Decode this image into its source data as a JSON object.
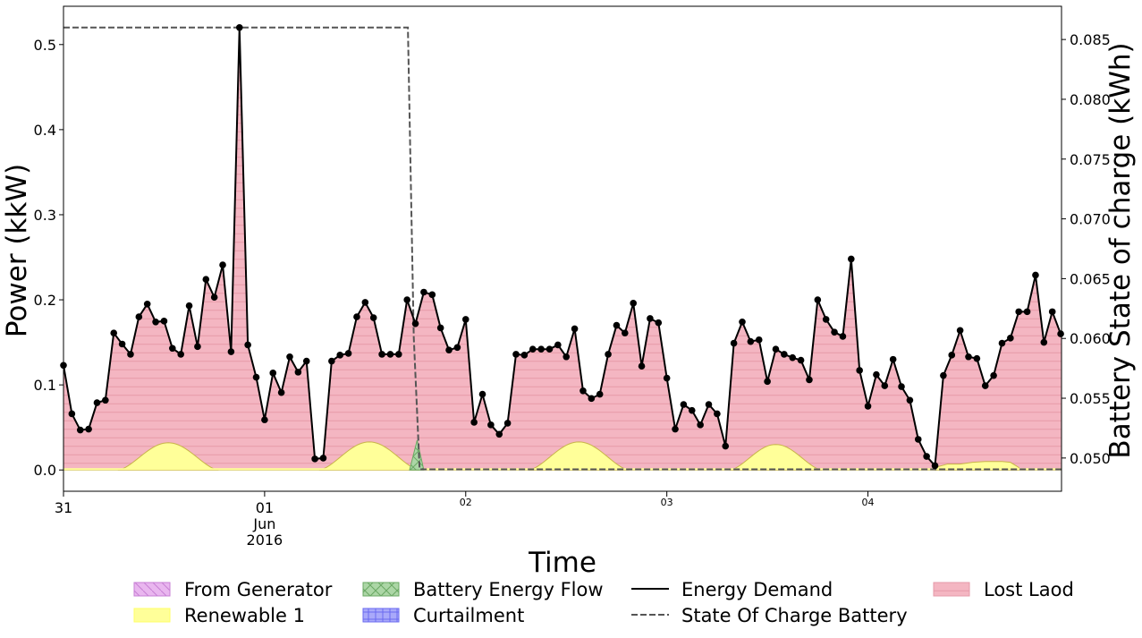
{
  "chart_data": {
    "type": "line",
    "xlabel": "Time",
    "ylabel": "Power (kkW)",
    "y2label": "Battery State of charge (kWh)",
    "xlim_hours": [
      0,
      119.1
    ],
    "ylim": [
      -0.025,
      0.545
    ],
    "y2lim": [
      0.04722,
      0.08778
    ],
    "grid": false,
    "legend_position": "bottom",
    "x_ticks": [
      {
        "hours": 0,
        "label": "31",
        "size": "large"
      },
      {
        "hours": 24,
        "label": "01",
        "label2": "Jun",
        "label3": "2016",
        "size": "large"
      },
      {
        "hours": 48,
        "label": "02",
        "size": "small"
      },
      {
        "hours": 72,
        "label": "03",
        "size": "small"
      },
      {
        "hours": 96,
        "label": "04",
        "size": "small"
      }
    ],
    "y_ticks": [
      "0.0",
      "0.1",
      "0.2",
      "0.3",
      "0.4",
      "0.5"
    ],
    "y2_ticks": [
      "0.050",
      "0.055",
      "0.060",
      "0.065",
      "0.070",
      "0.075",
      "0.080",
      "0.085"
    ],
    "series": [
      {
        "name": "Energy Demand",
        "style": "line-with-markers",
        "color": "#000000",
        "x_hours": [
          0,
          1,
          2,
          3,
          4,
          5,
          6,
          7,
          8,
          9,
          10,
          11,
          12,
          13,
          14,
          15,
          16,
          17,
          18,
          19,
          20,
          21,
          22,
          23,
          24,
          25,
          26,
          27,
          28,
          29,
          30,
          31,
          32,
          33,
          34,
          35,
          36,
          37,
          38,
          39,
          40,
          41,
          42,
          43,
          44,
          45,
          46,
          47,
          48,
          49,
          50,
          51,
          52,
          53,
          54,
          55,
          56,
          57,
          58,
          59,
          60,
          61,
          62,
          63,
          64,
          65,
          66,
          67,
          68,
          69,
          70,
          71,
          72,
          73,
          74,
          75,
          76,
          77,
          78,
          79,
          80,
          81,
          82,
          83,
          84,
          85,
          86,
          87,
          88,
          89,
          90,
          91,
          92,
          93,
          94,
          95,
          96,
          97,
          98,
          99,
          100,
          101,
          102,
          103,
          104,
          105,
          106,
          107,
          108,
          109,
          110,
          111,
          112,
          113,
          114,
          115,
          116,
          117,
          118,
          119
        ],
        "values": [
          0.123,
          0.066,
          0.047,
          0.048,
          0.079,
          0.082,
          0.161,
          0.148,
          0.136,
          0.18,
          0.195,
          0.174,
          0.175,
          0.143,
          0.136,
          0.193,
          0.145,
          0.224,
          0.203,
          0.241,
          0.139,
          0.52,
          0.147,
          0.109,
          0.059,
          0.114,
          0.091,
          0.133,
          0.115,
          0.128,
          0.013,
          0.014,
          0.128,
          0.135,
          0.137,
          0.18,
          0.197,
          0.179,
          0.136,
          0.136,
          0.136,
          0.2,
          0.172,
          0.209,
          0.206,
          0.167,
          0.141,
          0.144,
          0.177,
          0.056,
          0.089,
          0.053,
          0.042,
          0.055,
          0.136,
          0.135,
          0.142,
          0.142,
          0.142,
          0.147,
          0.133,
          0.166,
          0.093,
          0.084,
          0.089,
          0.136,
          0.17,
          0.161,
          0.196,
          0.122,
          0.178,
          0.173,
          0.108,
          0.048,
          0.077,
          0.07,
          0.053,
          0.077,
          0.066,
          0.028,
          0.149,
          0.174,
          0.151,
          0.153,
          0.104,
          0.142,
          0.136,
          0.132,
          0.129,
          0.106,
          0.2,
          0.177,
          0.162,
          0.157,
          0.248,
          0.117,
          0.075,
          0.112,
          0.099,
          0.13,
          0.098,
          0.082,
          0.036,
          0.016,
          0.005,
          0.111,
          0.135,
          0.164,
          0.133,
          0.131,
          0.099,
          0.111,
          0.149,
          0.155,
          0.186,
          0.186,
          0.229,
          0.15,
          0.186,
          0.16
        ]
      },
      {
        "name": "Renewable 1",
        "style": "area",
        "color": "#ffff99",
        "days": [
          {
            "start_hours": 6.5,
            "end_hours": 18.5,
            "peak": 0.032
          },
          {
            "start_hours": 30.5,
            "end_hours": 42.5,
            "peak": 0.033
          },
          {
            "start_hours": 55.5,
            "end_hours": 67.5,
            "peak": 0.033
          },
          {
            "start_hours": 79.5,
            "end_hours": 90.5,
            "peak": 0.03
          }
        ],
        "plateau": {
          "start_hours": 104,
          "end_hours": 114,
          "points": [
            [
              104,
              0.003
            ],
            [
              105.5,
              0.007
            ],
            [
              107,
              0.007
            ],
            [
              108.5,
              0.009
            ],
            [
              110,
              0.01
            ],
            [
              112,
              0.01
            ],
            [
              113,
              0.009
            ],
            [
              114,
              0.003
            ]
          ]
        }
      },
      {
        "name": "Battery Energy Flow",
        "style": "area",
        "color": "#99cc99",
        "points": [
          [
            41.3,
            0.0
          ],
          [
            42.2,
            0.035
          ],
          [
            43.0,
            0.0
          ]
        ]
      },
      {
        "name": "State Of Charge Battery",
        "style": "dashed-line",
        "axis": "right",
        "color": "#555555",
        "points": [
          [
            0,
            0.086
          ],
          [
            41.1,
            0.086
          ],
          [
            41.8,
            0.0601
          ],
          [
            42.5,
            0.04905
          ],
          [
            119.1,
            0.04905
          ]
        ]
      },
      {
        "name": "From Generator",
        "style": "area",
        "color": "#e6b3f0"
      },
      {
        "name": "Curtailment",
        "style": "area",
        "color": "#b3b3ff"
      },
      {
        "name": "Lost Laod",
        "style": "area",
        "color": "#f4b6c2"
      }
    ]
  },
  "legend": {
    "items": [
      {
        "label": "From Generator",
        "kind": "hatch-diag",
        "fill": "#e9b6ef",
        "stroke": "#c77fd4"
      },
      {
        "label": "Renewable 1",
        "kind": "solid",
        "fill": "#ffff99",
        "stroke": "#ffff66"
      },
      {
        "label": "Battery Energy Flow",
        "kind": "hatch-x",
        "fill": "#acd6a6",
        "stroke": "#6aa863"
      },
      {
        "label": "Curtailment",
        "kind": "hatch-grid",
        "fill": "#a9a9fa",
        "stroke": "#6a6af0"
      },
      {
        "label": "Energy Demand",
        "kind": "line",
        "fill": "#000000",
        "stroke": "#000000"
      },
      {
        "label": "State Of Charge Battery",
        "kind": "dash",
        "fill": "#555555",
        "stroke": "#555555"
      },
      {
        "label": "Lost Laod",
        "kind": "hatch-h",
        "fill": "#f4b6c2",
        "stroke": "#e69aa8"
      }
    ]
  }
}
